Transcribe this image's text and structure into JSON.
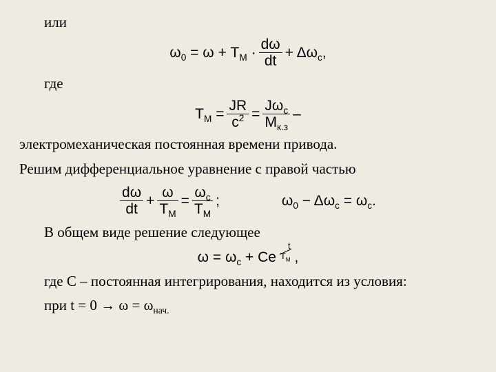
{
  "colors": {
    "bg": "#eeece0",
    "text": "#000000"
  },
  "fonts": {
    "body": "Times New Roman",
    "formula": "Arial",
    "body_size": 21,
    "formula_size": 21
  },
  "t": {
    "ili": "или",
    "gde": "где",
    "line1": "электромеханическая постоянная времени привода.",
    "line2": "Решим дифференциальное уравнение с правой частью",
    "line3": "В общем виде решение следующее",
    "line4": "где С – постоянная интегрирования, находится из условия:",
    "line5_a": "при t = 0  →  ω = ω",
    "line5_sub": "нач."
  },
  "f1": {
    "lhs": "ω",
    "lhs_sub": "0",
    "eq": " = ω + T",
    "TM_sub": "М",
    "dot": " · ",
    "dw": "dω",
    "dt": "dt",
    "plus": " + Δω",
    "dwc_sub": "с",
    "end": ","
  },
  "f2": {
    "T": "T",
    "M": "М",
    "eq": " = ",
    "JR": "JR",
    "c2": "c",
    "sq": "2",
    "eq2": " = ",
    "Jwc_a": "Jω",
    "Jwc_sub": "с",
    "Mkz_a": "M",
    "Mkz_sub": "к.з",
    "dash": " –"
  },
  "f3a": {
    "dw": "dω",
    "dt": "dt",
    "plus": " + ",
    "w": "ω",
    "TM_a": "T",
    "TM_sub": "М",
    "eq": " = ",
    "wc_a": "ω",
    "wc_sub": "с",
    "semi": ";"
  },
  "f3b": {
    "w0_a": "ω",
    "w0_sub": "0",
    "minus": " − Δω",
    "dwc_sub": "с",
    "eq": " = ω",
    "wc_sub": "с",
    "end": "."
  },
  "f4": {
    "w": "ω = ω",
    "wc_sub": "с",
    "plus": " + Ce",
    "t": "t",
    "TM_a": "T",
    "TM_sub": "М",
    "end": ","
  }
}
